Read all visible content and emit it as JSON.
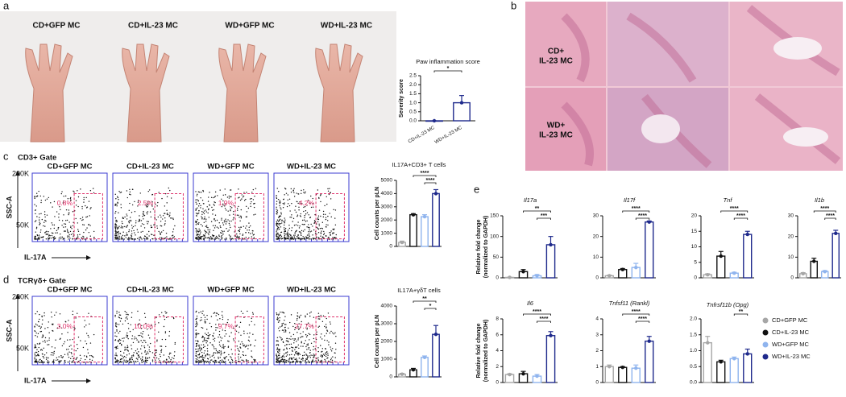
{
  "panels": {
    "a": {
      "label": "a",
      "photo_labels": [
        "CD+GFP MC",
        "CD+IL-23 MC",
        "WD+GFP MC",
        "WD+IL-23 MC"
      ]
    },
    "b": {
      "label": "b",
      "row_labels": [
        [
          "CD+",
          "IL-23 MC"
        ],
        [
          "WD+",
          "IL-23 MC"
        ]
      ]
    },
    "c": {
      "label": "c",
      "gate": "CD3+ Gate",
      "plot_labels": [
        "CD+GFP MC",
        "CD+IL-23 MC",
        "WD+GFP MC",
        "WD+IL-23 MC"
      ],
      "percentages": [
        "0.8%",
        "2.5%",
        "1.9%",
        "4.2%"
      ],
      "y_axis": "SSC-A",
      "x_axis": "IL-17A",
      "yticks": [
        "200K",
        "50K"
      ]
    },
    "d": {
      "label": "d",
      "gate": "TCRγδ+ Gate",
      "plot_labels": [
        "CD+GFP MC",
        "CD+IL-23 MC",
        "WD+GFP MC",
        "WD+IL-23 MC"
      ],
      "percentages": [
        "3.0%",
        "10.0%",
        "9.7%",
        "27.7%"
      ],
      "y_axis": "SSC-A",
      "x_axis": "IL-17A",
      "yticks": [
        "200K",
        "50K"
      ]
    },
    "e": {
      "label": "e",
      "legend": [
        {
          "name": "CD+GFP MC",
          "color": "#a6a6a6"
        },
        {
          "name": "CD+IL-23 MC",
          "color": "#111111"
        },
        {
          "name": "WD+GFP MC",
          "color": "#8fb4ee"
        },
        {
          "name": "WD+IL-23 MC",
          "color": "#1f2a8c"
        }
      ]
    }
  },
  "chart_data": [
    {
      "type": "bar",
      "title": "Paw inflammation score",
      "ylabel": "Severity score",
      "categories": [
        "CD+IL-23 MC",
        "WD+IL-23 MC"
      ],
      "values": [
        0,
        1.0
      ],
      "errors": [
        0,
        0.4
      ],
      "colors": [
        "#1f2a8c",
        "#1f2a8c"
      ],
      "ylim": [
        0,
        2.5
      ],
      "yticks": [
        {
          "value": 0,
          "label": "0.0"
        },
        {
          "value": 0.5,
          "label": "0.5"
        },
        {
          "value": 1,
          "label": "1.0"
        },
        {
          "value": 1.5,
          "label": "1.5"
        },
        {
          "value": 2,
          "label": "2.0"
        },
        {
          "value": 2.5,
          "label": "2.5"
        }
      ],
      "significance": [
        "*"
      ]
    },
    {
      "type": "bar",
      "title": "IL17A+CD3+ T cells",
      "ylabel": "Cell counts per pLN",
      "categories": [
        null,
        null,
        null,
        null
      ],
      "values": [
        300,
        2400,
        2250,
        4000
      ],
      "errors": [
        100,
        80,
        150,
        300
      ],
      "colors": [
        "#a6a6a6",
        "#111111",
        "#8fb4ee",
        "#1f2a8c"
      ],
      "ylim": [
        0,
        5000
      ],
      "yticks": [
        0,
        1000,
        2000,
        3000,
        4000,
        5000
      ],
      "significance": [
        "****",
        "****"
      ]
    },
    {
      "type": "bar",
      "title": "IL17A+γδT cells",
      "ylabel": "Cell counts per pLN",
      "categories": [
        null,
        null,
        null,
        null
      ],
      "values": [
        150,
        400,
        1100,
        2400
      ],
      "errors": [
        50,
        80,
        80,
        500
      ],
      "colors": [
        "#a6a6a6",
        "#111111",
        "#8fb4ee",
        "#1f2a8c"
      ],
      "ylim": [
        0,
        4000
      ],
      "yticks": [
        0,
        1000,
        2000,
        3000,
        4000
      ],
      "significance": [
        "**",
        "*"
      ]
    },
    {
      "type": "bar",
      "title": "Il17a",
      "ylabel": [
        "Relative fold change",
        "(normalized to GAPDH)"
      ],
      "categories": [
        null,
        null,
        null,
        null
      ],
      "values": [
        1,
        15,
        5,
        80
      ],
      "errors": [
        0.5,
        5,
        3,
        20
      ],
      "colors": [
        "#a6a6a6",
        "#111111",
        "#8fb4ee",
        "#1f2a8c"
      ],
      "ylim": [
        0,
        150
      ],
      "yticks": [
        0,
        50,
        100,
        150
      ],
      "significance": [
        "**",
        "***"
      ]
    },
    {
      "type": "bar",
      "title": "Il17f",
      "categories": [
        null,
        null,
        null,
        null
      ],
      "values": [
        1,
        4,
        5,
        27
      ],
      "errors": [
        0.3,
        0.5,
        2,
        0.5
      ],
      "colors": [
        "#a6a6a6",
        "#111111",
        "#8fb4ee",
        "#1f2a8c"
      ],
      "ylim": [
        0,
        30
      ],
      "yticks": [
        0,
        10,
        20,
        30
      ],
      "significance": [
        "****",
        "****"
      ]
    },
    {
      "type": "bar",
      "title": "Tnf",
      "categories": [
        null,
        null,
        null,
        null
      ],
      "values": [
        1,
        7,
        1.5,
        14
      ],
      "errors": [
        0.3,
        1.5,
        0.3,
        1
      ],
      "colors": [
        "#a6a6a6",
        "#111111",
        "#8fb4ee",
        "#1f2a8c"
      ],
      "ylim": [
        0,
        20
      ],
      "yticks": [
        0,
        5,
        10,
        15,
        20
      ],
      "significance": [
        "****",
        "****"
      ]
    },
    {
      "type": "bar",
      "title": "Il1b",
      "categories": [
        null,
        null,
        null,
        null
      ],
      "values": [
        2,
        8,
        3,
        21.5
      ],
      "errors": [
        0.5,
        1.5,
        0.5,
        1.5
      ],
      "colors": [
        "#a6a6a6",
        "#111111",
        "#8fb4ee",
        "#1f2a8c"
      ],
      "ylim": [
        0,
        30
      ],
      "yticks": [
        0,
        10,
        20,
        30
      ],
      "significance": [
        "****",
        "****"
      ]
    },
    {
      "type": "bar",
      "title": "Il6",
      "ylabel": [
        "Relative fold change",
        "(normalized to GAPDH)"
      ],
      "categories": [
        null,
        null,
        null,
        null
      ],
      "values": [
        1,
        1.1,
        0.8,
        5.9
      ],
      "errors": [
        0.1,
        0.3,
        0.2,
        0.5
      ],
      "colors": [
        "#a6a6a6",
        "#111111",
        "#8fb4ee",
        "#1f2a8c"
      ],
      "ylim": [
        0,
        8
      ],
      "yticks": [
        0,
        2,
        4,
        6,
        8
      ],
      "significance": [
        "****",
        "****"
      ]
    },
    {
      "type": "bar",
      "title": "Tnfsf11 (Rankl)",
      "categories": [
        null,
        null,
        null,
        null
      ],
      "values": [
        1,
        0.95,
        0.9,
        2.6
      ],
      "errors": [
        0.1,
        0.05,
        0.2,
        0.3
      ],
      "colors": [
        "#a6a6a6",
        "#111111",
        "#8fb4ee",
        "#1f2a8c"
      ],
      "ylim": [
        0,
        4
      ],
      "yticks": [
        0,
        1,
        2,
        3,
        4
      ],
      "significance": [
        "****",
        "****"
      ]
    },
    {
      "type": "bar",
      "title": "Tnfrsf11b (Opg)",
      "categories": [
        null,
        null,
        null,
        null
      ],
      "values": [
        1.25,
        0.65,
        0.75,
        0.9
      ],
      "errors": [
        0.2,
        0.05,
        0.05,
        0.15
      ],
      "colors": [
        "#a6a6a6",
        "#111111",
        "#8fb4ee",
        "#1f2a8c"
      ],
      "ylim": [
        0,
        2
      ],
      "yticks": [
        {
          "value": 0,
          "label": "0.0"
        },
        {
          "value": 0.5,
          "label": "0.5"
        },
        {
          "value": 1,
          "label": "1.0"
        },
        {
          "value": 1.5,
          "label": "1.5"
        },
        {
          "value": 2,
          "label": "2.0"
        }
      ],
      "significance": [
        "**"
      ]
    }
  ]
}
